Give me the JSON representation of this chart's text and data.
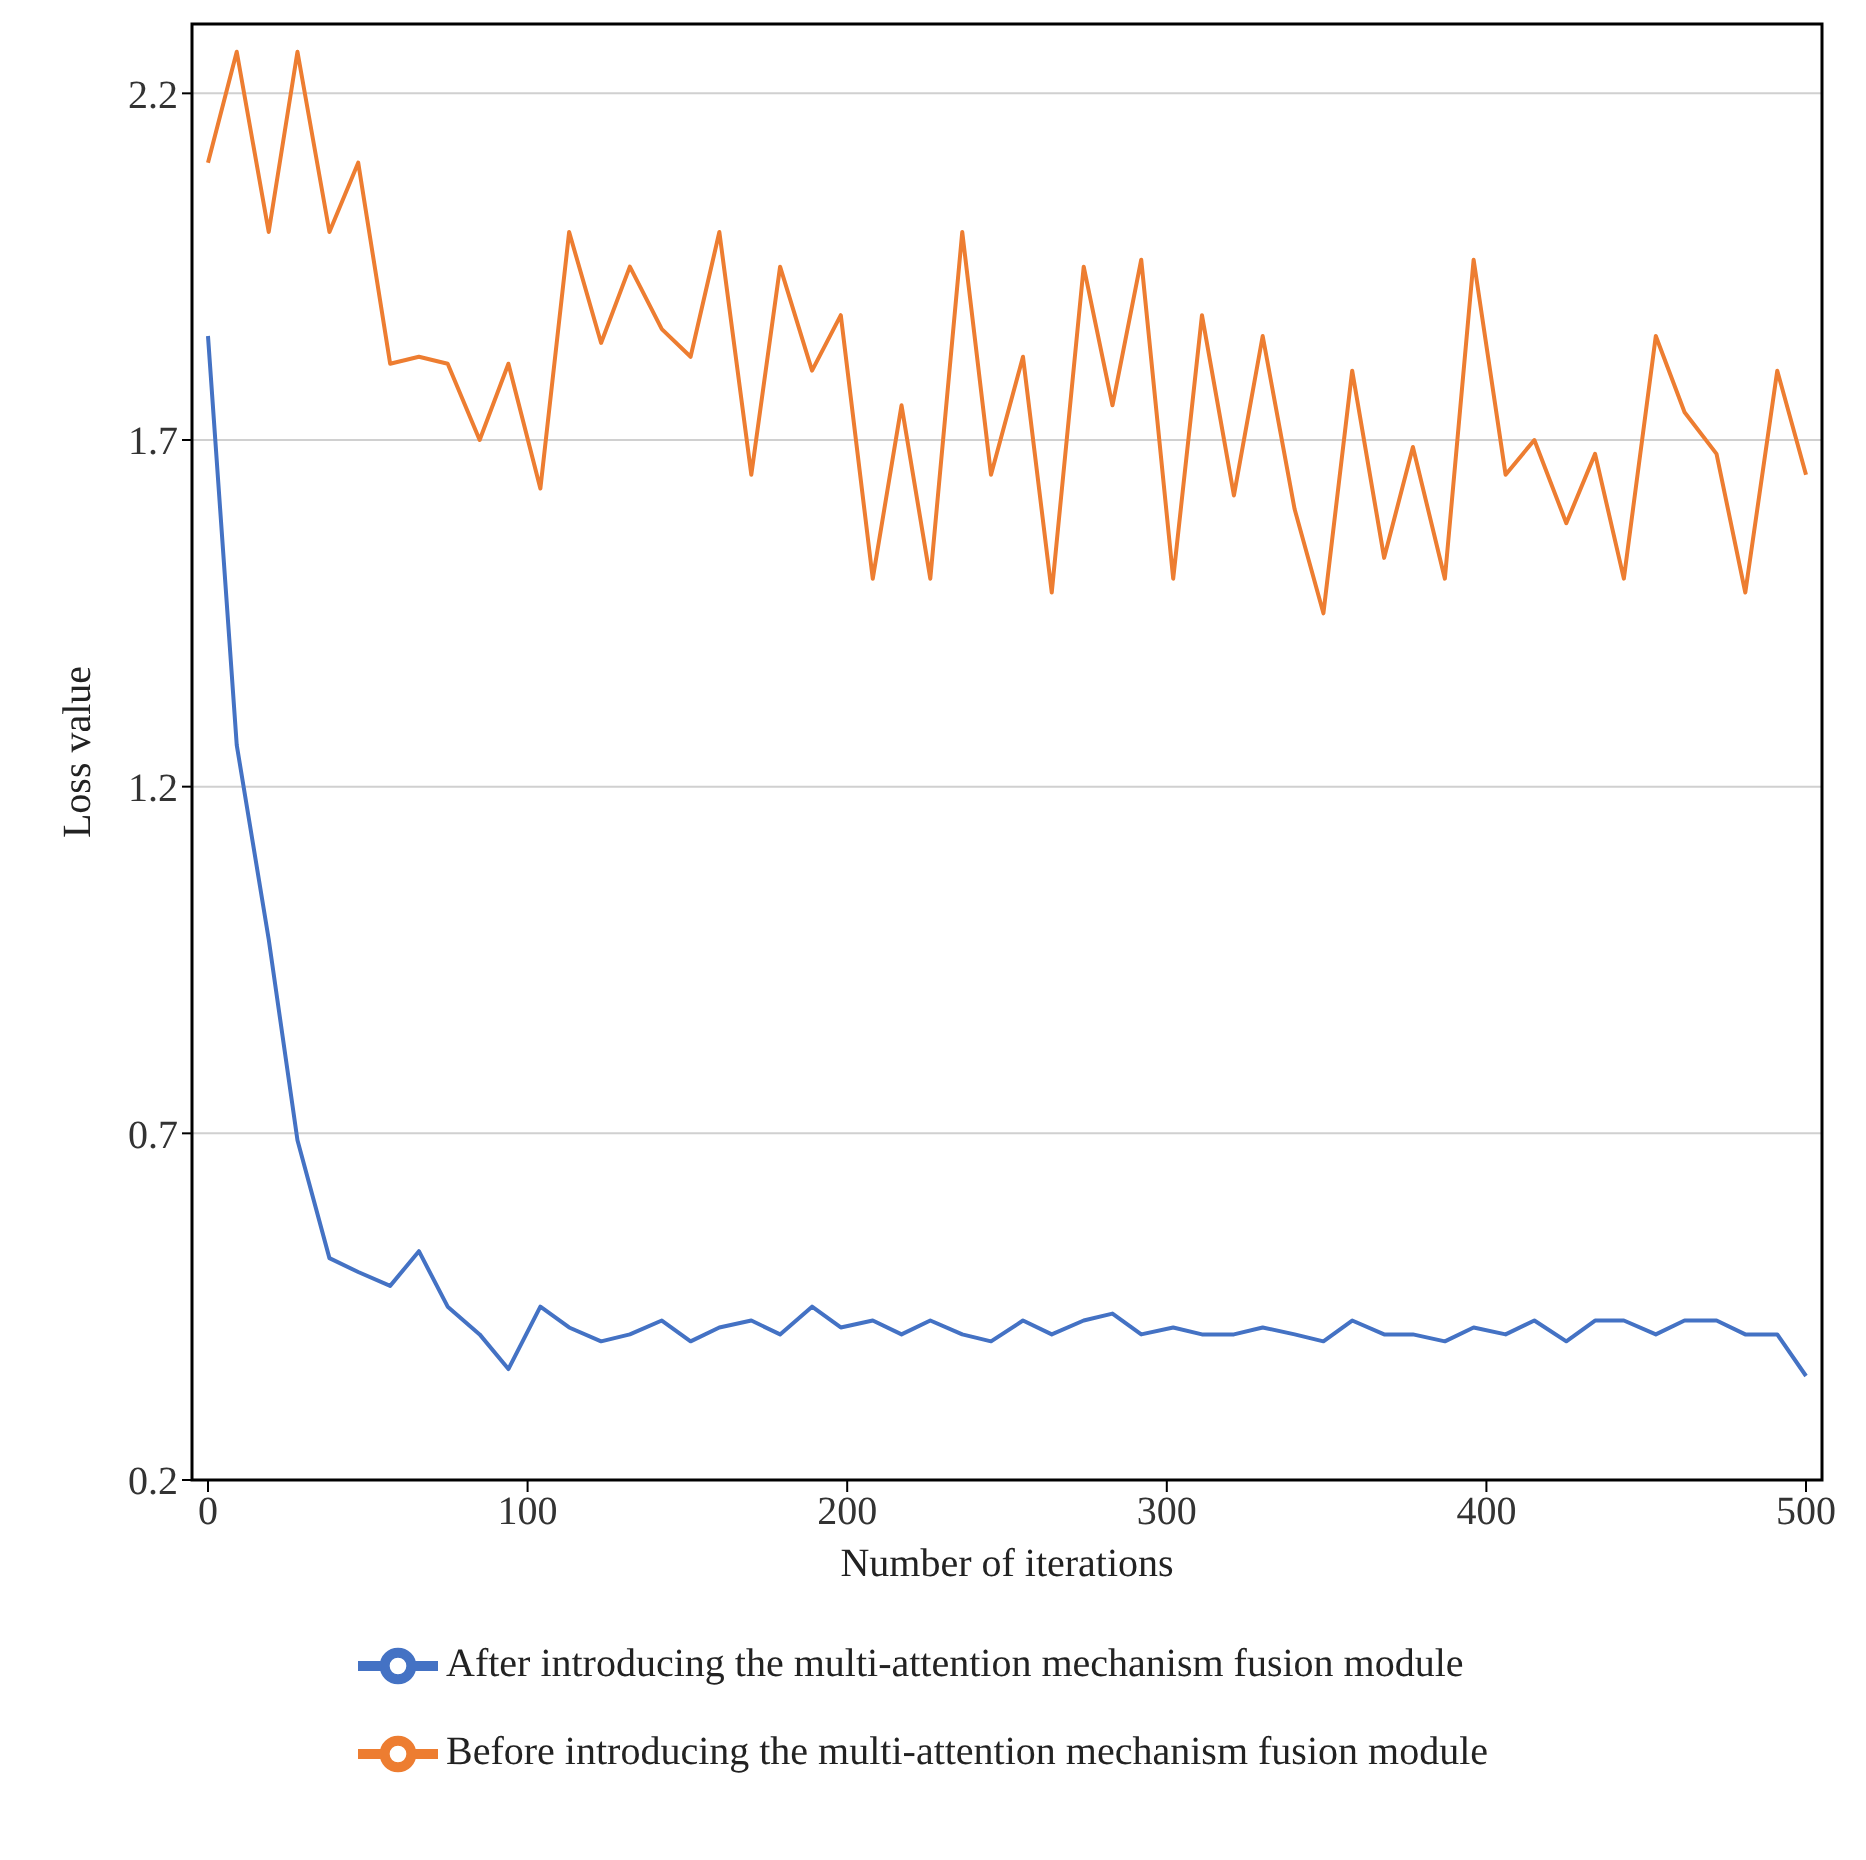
{
  "chart_data": {
    "type": "line",
    "xlabel": "Number of iterations",
    "ylabel": "Loss value",
    "x": [
      0,
      9,
      19,
      28,
      38,
      47,
      57,
      66,
      75,
      85,
      94,
      104,
      113,
      123,
      132,
      142,
      151,
      160,
      170,
      179,
      189,
      198,
      208,
      217,
      226,
      236,
      245,
      255,
      264,
      274,
      283,
      292,
      302,
      311,
      321,
      330,
      340,
      349,
      358,
      368,
      377,
      387,
      396,
      406,
      415,
      425,
      434,
      443,
      453,
      462,
      472,
      481,
      491,
      500
    ],
    "series": [
      {
        "name": "After introducing the multi-attention mechanism fusion module",
        "color": "#4472c4",
        "values": [
          1.85,
          1.26,
          0.98,
          0.69,
          0.52,
          0.5,
          0.48,
          0.53,
          0.45,
          0.41,
          0.36,
          0.45,
          0.42,
          0.4,
          0.41,
          0.43,
          0.4,
          0.42,
          0.43,
          0.41,
          0.45,
          0.42,
          0.43,
          0.41,
          0.43,
          0.41,
          0.4,
          0.43,
          0.41,
          0.43,
          0.44,
          0.41,
          0.42,
          0.41,
          0.41,
          0.42,
          0.41,
          0.4,
          0.43,
          0.41,
          0.41,
          0.4,
          0.42,
          0.41,
          0.43,
          0.4,
          0.43,
          0.43,
          0.41,
          0.43,
          0.43,
          0.41,
          0.41,
          0.35
        ]
      },
      {
        "name": "Before introducing the multi-attention mechanism fusion module",
        "color": "#ed7d31",
        "values": [
          2.1,
          2.26,
          2.0,
          2.26,
          2.0,
          2.1,
          1.81,
          1.82,
          1.81,
          1.7,
          1.81,
          1.63,
          2.0,
          1.84,
          1.95,
          1.86,
          1.82,
          2.0,
          1.65,
          1.95,
          1.8,
          1.88,
          1.5,
          1.75,
          1.5,
          2.0,
          1.65,
          1.82,
          1.48,
          1.95,
          1.75,
          1.96,
          1.5,
          1.88,
          1.62,
          1.85,
          1.6,
          1.45,
          1.8,
          1.53,
          1.69,
          1.5,
          1.96,
          1.65,
          1.7,
          1.58,
          1.68,
          1.5,
          1.85,
          1.74,
          1.68,
          1.48,
          1.8,
          1.65
        ]
      }
    ],
    "xlim": [
      -5,
      505
    ],
    "xticks": [
      0,
      100,
      200,
      300,
      400,
      500
    ],
    "ylim": [
      0.2,
      2.3
    ],
    "yticks": [
      0.2,
      0.7,
      1.2,
      1.7,
      2.2
    ],
    "grid": "y",
    "legend": "bottom",
    "marker": "none",
    "line_style": "solid"
  }
}
